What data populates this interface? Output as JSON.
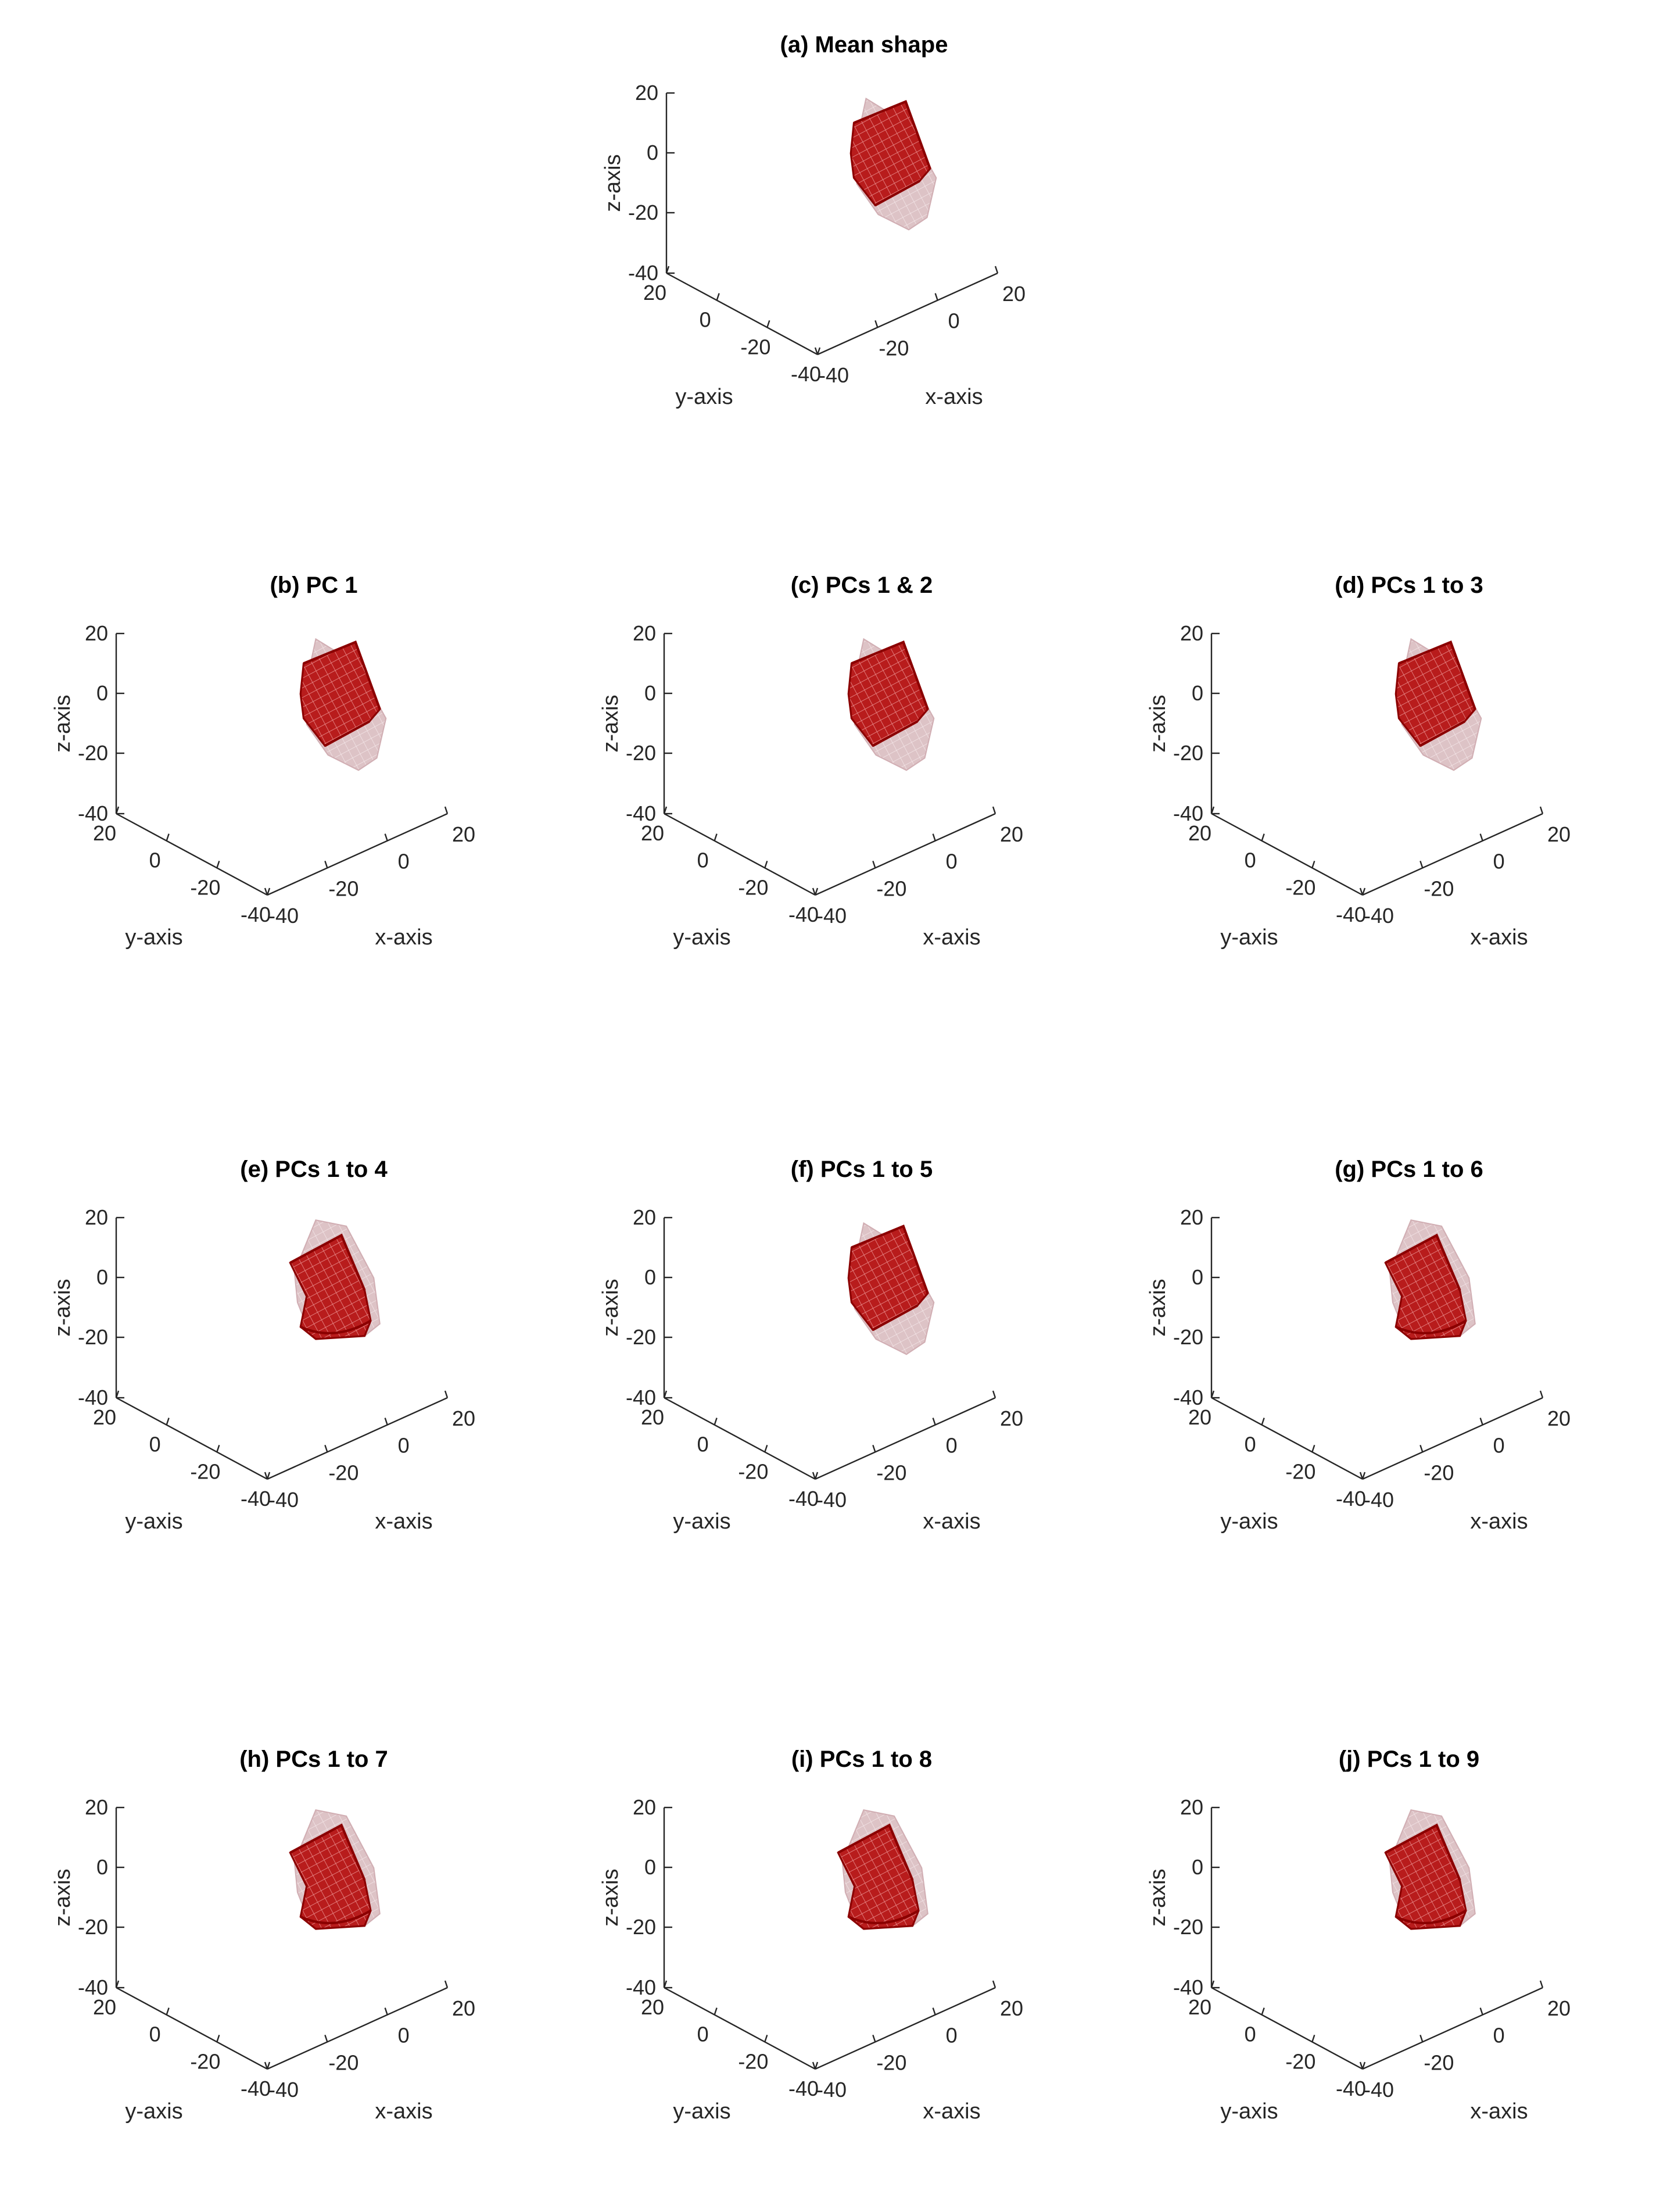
{
  "figure": {
    "panels": [
      {
        "title": "(a) Mean shape",
        "variant": "mean"
      },
      {
        "title": "(b) PC 1",
        "variant": "pc1"
      },
      {
        "title": "(c) PCs 1 & 2",
        "variant": "pc12"
      },
      {
        "title": "(d) PCs 1 to 3",
        "variant": "pc13"
      },
      {
        "title": "(e) PCs 1 to 4",
        "variant": "pc14"
      },
      {
        "title": "(f) PCs 1 to 5",
        "variant": "pc15"
      },
      {
        "title": "(g) PCs 1 to 6",
        "variant": "pc16"
      },
      {
        "title": "(h) PCs 1 to 7",
        "variant": "pc17"
      },
      {
        "title": "(i) PCs 1 to 8",
        "variant": "pc18"
      },
      {
        "title": "(j) PCs 1 to 9",
        "variant": "pc19"
      }
    ],
    "axes": {
      "z_label": "z-axis",
      "y_label": "y-axis",
      "x_label": "x-axis",
      "z_ticks": [
        "20",
        "0",
        "-20",
        "-40"
      ],
      "y_ticks": [
        "20",
        "0",
        "-20",
        "-40"
      ],
      "x_ticks": [
        "-40",
        "-20",
        "0",
        "20"
      ]
    },
    "colors": {
      "shape_fill": "#b22222",
      "shape_edge": "#8b0000",
      "ghost_fill": "#c9a0a6",
      "axis": "#262626"
    }
  }
}
